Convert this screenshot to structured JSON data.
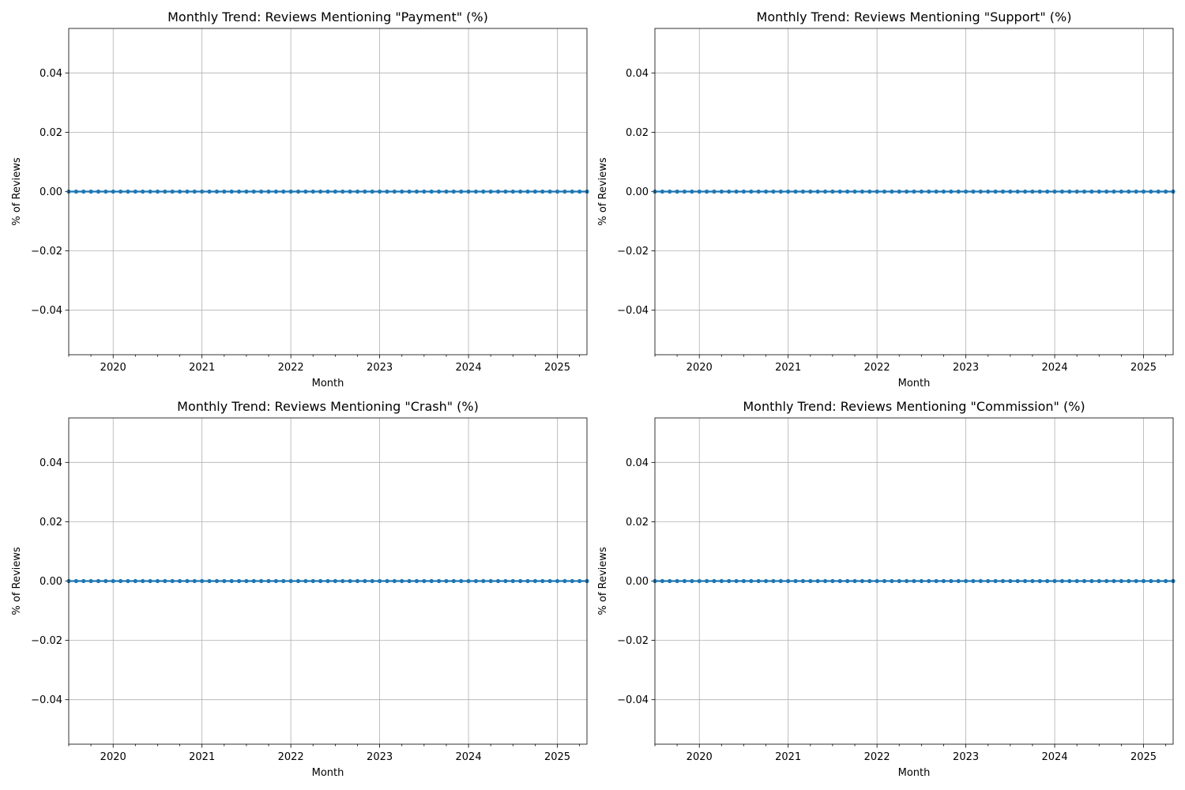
{
  "chart_data": [
    {
      "type": "line",
      "title": "Monthly Trend: Reviews Mentioning \"Payment\" (%)",
      "xlabel": "Month",
      "ylabel": "% of Reviews",
      "x_start": "2019-07",
      "x_end": "2025-05",
      "x": [
        "2019-07",
        "2019-08",
        "2019-09",
        "2019-10",
        "2019-11",
        "2019-12",
        "2020-01",
        "2020-02",
        "2020-03",
        "2020-04",
        "2020-05",
        "2020-06",
        "2020-07",
        "2020-08",
        "2020-09",
        "2020-10",
        "2020-11",
        "2020-12",
        "2021-01",
        "2021-02",
        "2021-03",
        "2021-04",
        "2021-05",
        "2021-06",
        "2021-07",
        "2021-08",
        "2021-09",
        "2021-10",
        "2021-11",
        "2021-12",
        "2022-01",
        "2022-02",
        "2022-03",
        "2022-04",
        "2022-05",
        "2022-06",
        "2022-07",
        "2022-08",
        "2022-09",
        "2022-10",
        "2022-11",
        "2022-12",
        "2023-01",
        "2023-02",
        "2023-03",
        "2023-04",
        "2023-05",
        "2023-06",
        "2023-07",
        "2023-08",
        "2023-09",
        "2023-10",
        "2023-11",
        "2023-12",
        "2024-01",
        "2024-02",
        "2024-03",
        "2024-04",
        "2024-05",
        "2024-06",
        "2024-07",
        "2024-08",
        "2024-09",
        "2024-10",
        "2024-11",
        "2024-12",
        "2025-01",
        "2025-02",
        "2025-03",
        "2025-04",
        "2025-05"
      ],
      "values": [
        0,
        0,
        0,
        0,
        0,
        0,
        0,
        0,
        0,
        0,
        0,
        0,
        0,
        0,
        0,
        0,
        0,
        0,
        0,
        0,
        0,
        0,
        0,
        0,
        0,
        0,
        0,
        0,
        0,
        0,
        0,
        0,
        0,
        0,
        0,
        0,
        0,
        0,
        0,
        0,
        0,
        0,
        0,
        0,
        0,
        0,
        0,
        0,
        0,
        0,
        0,
        0,
        0,
        0,
        0,
        0,
        0,
        0,
        0,
        0,
        0,
        0,
        0,
        0,
        0,
        0,
        0,
        0,
        0,
        0,
        0
      ],
      "x_ticks": [
        "2020",
        "2021",
        "2022",
        "2023",
        "2024",
        "2025"
      ],
      "y_ticks": [
        "0.04",
        "0.02",
        "0.00",
        "−0.02",
        "−0.04"
      ],
      "y_tick_values": [
        0.04,
        0.02,
        0.0,
        -0.02,
        -0.04
      ],
      "ylim": [
        -0.055,
        0.055
      ],
      "grid": true,
      "color": "#1f77b4"
    },
    {
      "type": "line",
      "title": "Monthly Trend: Reviews Mentioning \"Support\" (%)",
      "xlabel": "Month",
      "ylabel": "% of Reviews",
      "x_start": "2019-07",
      "x_end": "2025-05",
      "x": [
        "2019-07",
        "2019-08",
        "2019-09",
        "2019-10",
        "2019-11",
        "2019-12",
        "2020-01",
        "2020-02",
        "2020-03",
        "2020-04",
        "2020-05",
        "2020-06",
        "2020-07",
        "2020-08",
        "2020-09",
        "2020-10",
        "2020-11",
        "2020-12",
        "2021-01",
        "2021-02",
        "2021-03",
        "2021-04",
        "2021-05",
        "2021-06",
        "2021-07",
        "2021-08",
        "2021-09",
        "2021-10",
        "2021-11",
        "2021-12",
        "2022-01",
        "2022-02",
        "2022-03",
        "2022-04",
        "2022-05",
        "2022-06",
        "2022-07",
        "2022-08",
        "2022-09",
        "2022-10",
        "2022-11",
        "2022-12",
        "2023-01",
        "2023-02",
        "2023-03",
        "2023-04",
        "2023-05",
        "2023-06",
        "2023-07",
        "2023-08",
        "2023-09",
        "2023-10",
        "2023-11",
        "2023-12",
        "2024-01",
        "2024-02",
        "2024-03",
        "2024-04",
        "2024-05",
        "2024-06",
        "2024-07",
        "2024-08",
        "2024-09",
        "2024-10",
        "2024-11",
        "2024-12",
        "2025-01",
        "2025-02",
        "2025-03",
        "2025-04",
        "2025-05"
      ],
      "values": [
        0,
        0,
        0,
        0,
        0,
        0,
        0,
        0,
        0,
        0,
        0,
        0,
        0,
        0,
        0,
        0,
        0,
        0,
        0,
        0,
        0,
        0,
        0,
        0,
        0,
        0,
        0,
        0,
        0,
        0,
        0,
        0,
        0,
        0,
        0,
        0,
        0,
        0,
        0,
        0,
        0,
        0,
        0,
        0,
        0,
        0,
        0,
        0,
        0,
        0,
        0,
        0,
        0,
        0,
        0,
        0,
        0,
        0,
        0,
        0,
        0,
        0,
        0,
        0,
        0,
        0,
        0,
        0,
        0,
        0,
        0
      ],
      "x_ticks": [
        "2020",
        "2021",
        "2022",
        "2023",
        "2024",
        "2025"
      ],
      "y_ticks": [
        "0.04",
        "0.02",
        "0.00",
        "−0.02",
        "−0.04"
      ],
      "y_tick_values": [
        0.04,
        0.02,
        0.0,
        -0.02,
        -0.04
      ],
      "ylim": [
        -0.055,
        0.055
      ],
      "grid": true,
      "color": "#1f77b4"
    },
    {
      "type": "line",
      "title": "Monthly Trend: Reviews Mentioning \"Crash\" (%)",
      "xlabel": "Month",
      "ylabel": "% of Reviews",
      "x_start": "2019-07",
      "x_end": "2025-05",
      "x": [
        "2019-07",
        "2019-08",
        "2019-09",
        "2019-10",
        "2019-11",
        "2019-12",
        "2020-01",
        "2020-02",
        "2020-03",
        "2020-04",
        "2020-05",
        "2020-06",
        "2020-07",
        "2020-08",
        "2020-09",
        "2020-10",
        "2020-11",
        "2020-12",
        "2021-01",
        "2021-02",
        "2021-03",
        "2021-04",
        "2021-05",
        "2021-06",
        "2021-07",
        "2021-08",
        "2021-09",
        "2021-10",
        "2021-11",
        "2021-12",
        "2022-01",
        "2022-02",
        "2022-03",
        "2022-04",
        "2022-05",
        "2022-06",
        "2022-07",
        "2022-08",
        "2022-09",
        "2022-10",
        "2022-11",
        "2022-12",
        "2023-01",
        "2023-02",
        "2023-03",
        "2023-04",
        "2023-05",
        "2023-06",
        "2023-07",
        "2023-08",
        "2023-09",
        "2023-10",
        "2023-11",
        "2023-12",
        "2024-01",
        "2024-02",
        "2024-03",
        "2024-04",
        "2024-05",
        "2024-06",
        "2024-07",
        "2024-08",
        "2024-09",
        "2024-10",
        "2024-11",
        "2024-12",
        "2025-01",
        "2025-02",
        "2025-03",
        "2025-04",
        "2025-05"
      ],
      "values": [
        0,
        0,
        0,
        0,
        0,
        0,
        0,
        0,
        0,
        0,
        0,
        0,
        0,
        0,
        0,
        0,
        0,
        0,
        0,
        0,
        0,
        0,
        0,
        0,
        0,
        0,
        0,
        0,
        0,
        0,
        0,
        0,
        0,
        0,
        0,
        0,
        0,
        0,
        0,
        0,
        0,
        0,
        0,
        0,
        0,
        0,
        0,
        0,
        0,
        0,
        0,
        0,
        0,
        0,
        0,
        0,
        0,
        0,
        0,
        0,
        0,
        0,
        0,
        0,
        0,
        0,
        0,
        0,
        0,
        0,
        0
      ],
      "x_ticks": [
        "2020",
        "2021",
        "2022",
        "2023",
        "2024",
        "2025"
      ],
      "y_ticks": [
        "0.04",
        "0.02",
        "0.00",
        "−0.02",
        "−0.04"
      ],
      "y_tick_values": [
        0.04,
        0.02,
        0.0,
        -0.02,
        -0.04
      ],
      "ylim": [
        -0.055,
        0.055
      ],
      "grid": true,
      "color": "#1f77b4"
    },
    {
      "type": "line",
      "title": "Monthly Trend: Reviews Mentioning \"Commission\" (%)",
      "xlabel": "Month",
      "ylabel": "% of Reviews",
      "x_start": "2019-07",
      "x_end": "2025-05",
      "x": [
        "2019-07",
        "2019-08",
        "2019-09",
        "2019-10",
        "2019-11",
        "2019-12",
        "2020-01",
        "2020-02",
        "2020-03",
        "2020-04",
        "2020-05",
        "2020-06",
        "2020-07",
        "2020-08",
        "2020-09",
        "2020-10",
        "2020-11",
        "2020-12",
        "2021-01",
        "2021-02",
        "2021-03",
        "2021-04",
        "2021-05",
        "2021-06",
        "2021-07",
        "2021-08",
        "2021-09",
        "2021-10",
        "2021-11",
        "2021-12",
        "2022-01",
        "2022-02",
        "2022-03",
        "2022-04",
        "2022-05",
        "2022-06",
        "2022-07",
        "2022-08",
        "2022-09",
        "2022-10",
        "2022-11",
        "2022-12",
        "2023-01",
        "2023-02",
        "2023-03",
        "2023-04",
        "2023-05",
        "2023-06",
        "2023-07",
        "2023-08",
        "2023-09",
        "2023-10",
        "2023-11",
        "2023-12",
        "2024-01",
        "2024-02",
        "2024-03",
        "2024-04",
        "2024-05",
        "2024-06",
        "2024-07",
        "2024-08",
        "2024-09",
        "2024-10",
        "2024-11",
        "2024-12",
        "2025-01",
        "2025-02",
        "2025-03",
        "2025-04",
        "2025-05"
      ],
      "values": [
        0,
        0,
        0,
        0,
        0,
        0,
        0,
        0,
        0,
        0,
        0,
        0,
        0,
        0,
        0,
        0,
        0,
        0,
        0,
        0,
        0,
        0,
        0,
        0,
        0,
        0,
        0,
        0,
        0,
        0,
        0,
        0,
        0,
        0,
        0,
        0,
        0,
        0,
        0,
        0,
        0,
        0,
        0,
        0,
        0,
        0,
        0,
        0,
        0,
        0,
        0,
        0,
        0,
        0,
        0,
        0,
        0,
        0,
        0,
        0,
        0,
        0,
        0,
        0,
        0,
        0,
        0,
        0,
        0,
        0,
        0
      ],
      "x_ticks": [
        "2020",
        "2021",
        "2022",
        "2023",
        "2024",
        "2025"
      ],
      "y_ticks": [
        "0.04",
        "0.02",
        "0.00",
        "−0.02",
        "−0.04"
      ],
      "y_tick_values": [
        0.04,
        0.02,
        0.0,
        -0.02,
        -0.04
      ],
      "ylim": [
        -0.055,
        0.055
      ],
      "grid": true,
      "color": "#1f77b4"
    }
  ]
}
